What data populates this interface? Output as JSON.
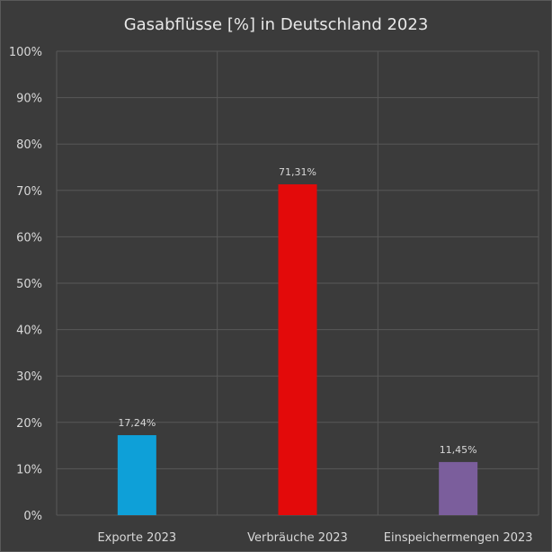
{
  "chart_data": {
    "type": "bar",
    "title": "Gasabflüsse [%] in Deutschland 2023",
    "categories": [
      "Exporte 2023",
      "Verbräuche 2023",
      "Einspeichermengen 2023"
    ],
    "values": [
      17.24,
      71.31,
      11.45
    ],
    "value_labels": [
      "17,24%",
      "71,31%",
      "11,45%"
    ],
    "colors": [
      "#0ea0d8",
      "#e30a0a",
      "#7b5e9c"
    ],
    "ylim": [
      0,
      100
    ],
    "yticks": [
      "0%",
      "10%",
      "20%",
      "30%",
      "40%",
      "50%",
      "60%",
      "70%",
      "80%",
      "90%",
      "100%"
    ],
    "grid": true,
    "legend": "none"
  }
}
